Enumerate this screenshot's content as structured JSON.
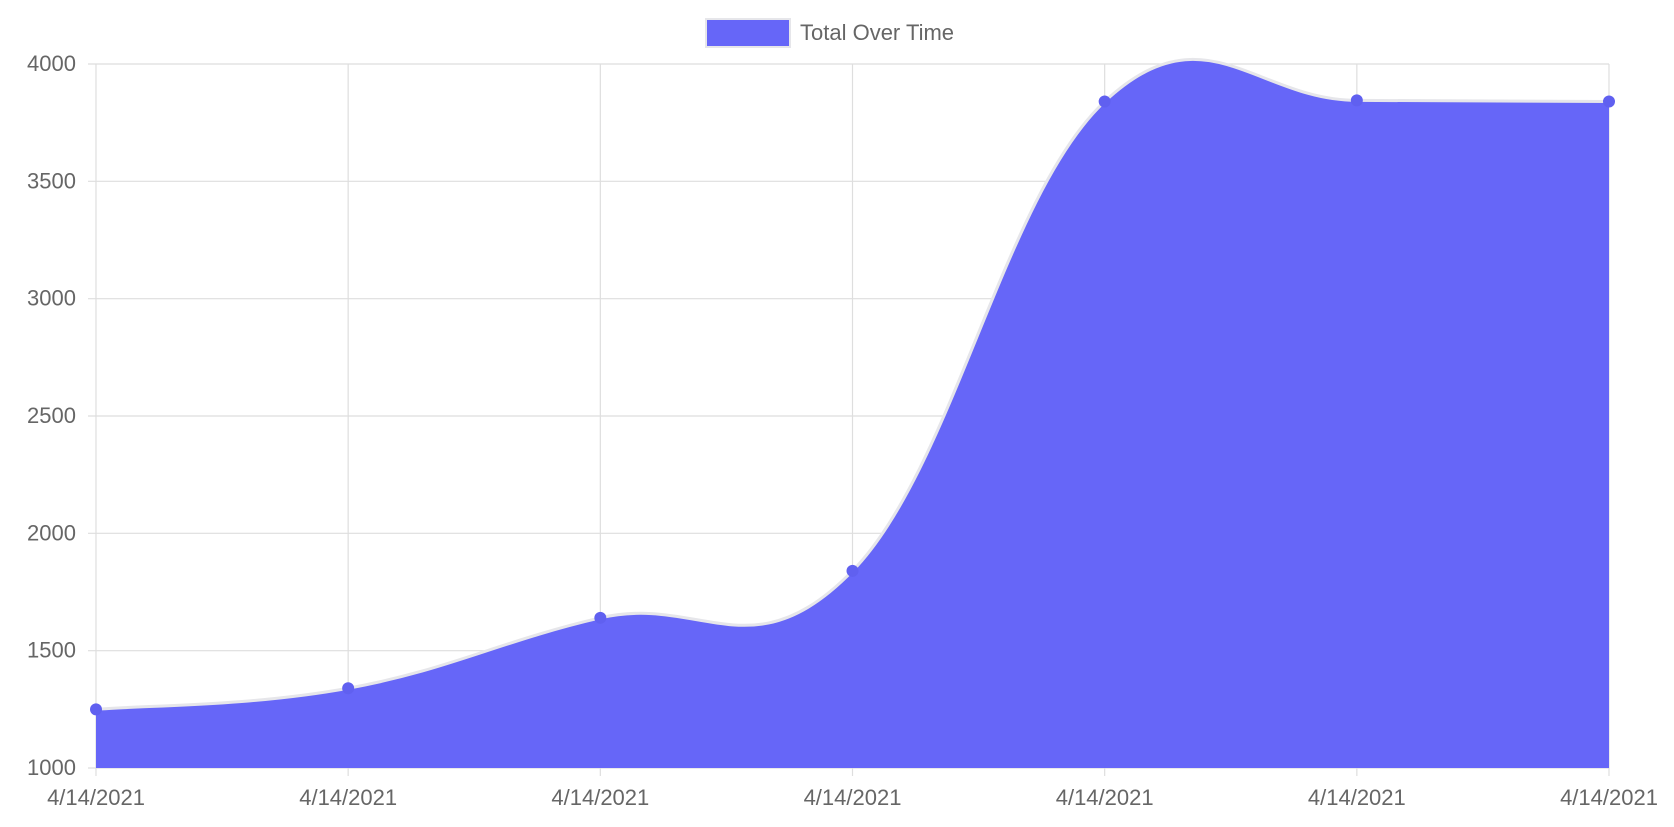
{
  "legend": {
    "label": "Total Over Time",
    "position": "top-center"
  },
  "colors": {
    "fill": "#6666f8",
    "stroke": "#e6e6ea",
    "point": "#6060f0",
    "grid": "#dedede",
    "axis_text": "#666666"
  },
  "chart_data": {
    "type": "area",
    "title": "",
    "xlabel": "",
    "ylabel": "",
    "x": [
      "4/14/2021",
      "4/14/2021",
      "4/14/2021",
      "4/14/2021",
      "4/14/2021",
      "4/14/2021",
      "4/14/2021"
    ],
    "series": [
      {
        "name": "Total Over Time",
        "values": [
          1250,
          1340,
          1640,
          1840,
          3840,
          3845,
          3840
        ]
      }
    ],
    "ylim": [
      1000,
      4000
    ],
    "yticks": [
      1000,
      1500,
      2000,
      2500,
      3000,
      3500,
      4000
    ],
    "grid": true,
    "smooth": true
  }
}
